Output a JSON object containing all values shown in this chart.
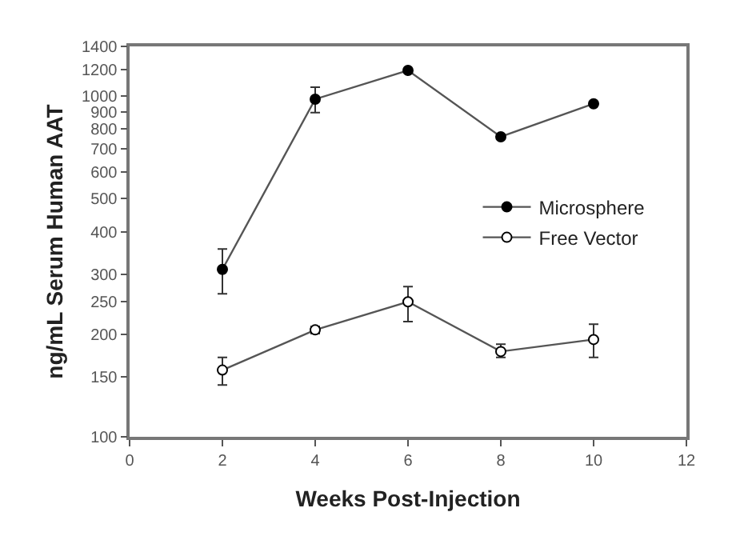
{
  "chart_data": {
    "type": "line",
    "xlabel": "Weeks Post-Injection",
    "ylabel": "ng/mL Serum Human AAT",
    "x": [
      2,
      4,
      6,
      8,
      10
    ],
    "series": [
      {
        "name": "Microsphere",
        "color": "#000000",
        "marker": "circle",
        "values": [
          310,
          980,
          1190,
          760,
          950
        ],
        "errors": [
          [
            263,
            356
          ],
          [
            895,
            1063
          ],
          null,
          null,
          null
        ]
      },
      {
        "name": "Free Vector",
        "color": "#ffffff",
        "marker": "circle",
        "values": [
          157,
          206,
          249,
          178,
          193
        ],
        "errors": [
          [
            142,
            171
          ],
          [
            201,
            211
          ],
          [
            218,
            276
          ],
          [
            171,
            187
          ],
          [
            171,
            214
          ]
        ]
      }
    ],
    "log": "y",
    "xlim": [
      0,
      12
    ],
    "xticks": [
      0,
      2,
      4,
      6,
      8,
      10,
      12
    ],
    "ylim": [
      100,
      1400
    ],
    "yticks": [
      100,
      150,
      200,
      250,
      300,
      400,
      500,
      600,
      700,
      800,
      900,
      1000,
      1200,
      1400
    ],
    "grid": false,
    "legend": "right",
    "line_style": "solid"
  }
}
